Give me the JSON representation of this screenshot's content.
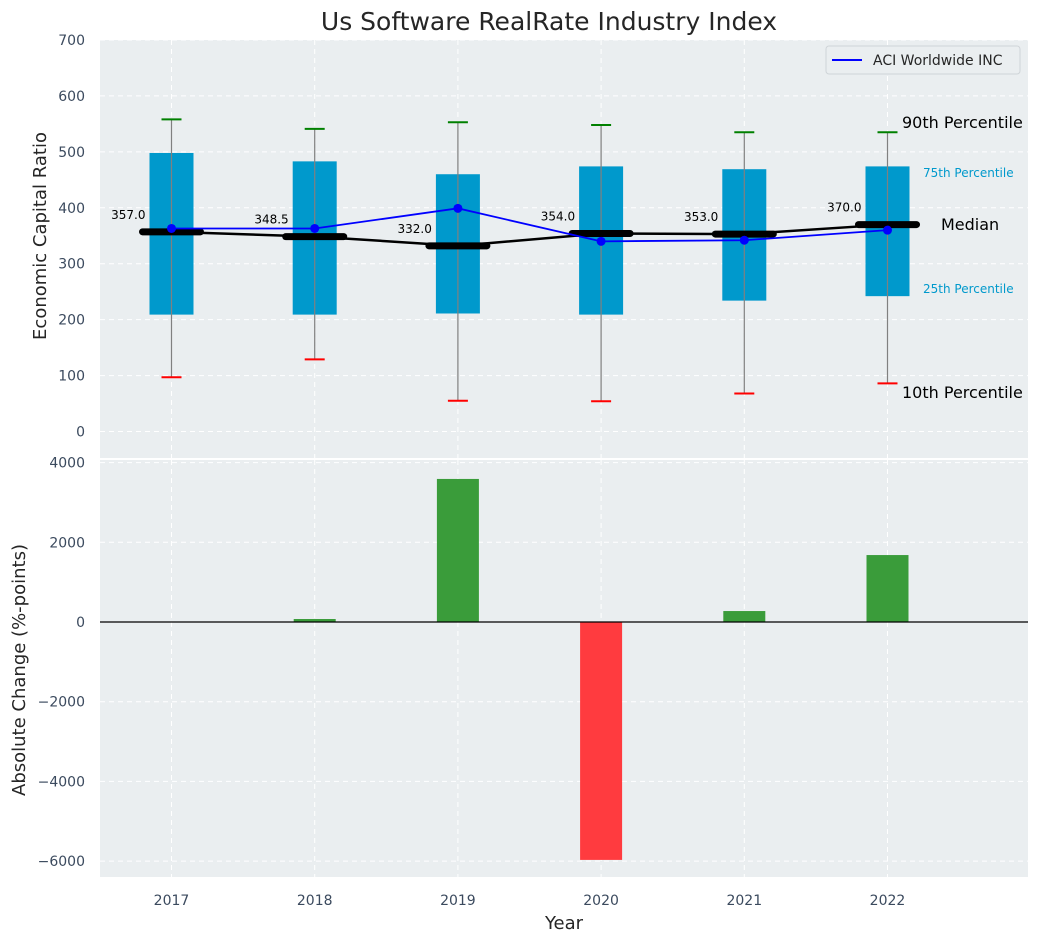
{
  "chart_data": [
    {
      "type": "box",
      "title": "Us Software RealRate Industry Index",
      "xlabel": "",
      "ylabel": "Economic Capital Ratio",
      "ylim": [
        -50,
        700
      ],
      "yticks": [
        0,
        100,
        200,
        300,
        400,
        500,
        600,
        700
      ],
      "grid": true,
      "categories": [
        "2017",
        "2018",
        "2019",
        "2020",
        "2021",
        "2022"
      ],
      "p10": [
        97,
        129,
        55,
        54,
        68,
        86
      ],
      "p25": [
        209,
        209,
        211,
        209,
        234,
        242
      ],
      "median": [
        357.0,
        348.5,
        332.0,
        354.0,
        353.0,
        370.0
      ],
      "median_labels": [
        "357.0",
        "348.5",
        "332.0",
        "354.0",
        "353.0",
        "370.0"
      ],
      "p75": [
        498,
        483,
        460,
        474,
        469,
        474
      ],
      "p90": [
        558,
        541,
        553,
        548,
        535,
        535
      ],
      "series": [
        {
          "name": "ACI Worldwide INC",
          "values": [
            363,
            363,
            399,
            340,
            342,
            360
          ],
          "color": "#0000ff"
        }
      ],
      "legend": {
        "position": "top-right",
        "entries": [
          "ACI Worldwide INC"
        ]
      },
      "annotations": {
        "p90": "90th Percentile",
        "p75": "75th Percentile",
        "median": "Median",
        "p25": "25th Percentile",
        "p10": "10th Percentile"
      },
      "colors": {
        "box": "#0099cc",
        "median": "#000000",
        "p90_cap": "#008000",
        "p10_cap": "#ff0000",
        "whisker": "#808080",
        "percentile_text": "#0099cc",
        "panel_bg": "#eaeef0"
      }
    },
    {
      "type": "bar",
      "xlabel": "Year",
      "ylabel": "Absolute Change (%-points)",
      "ylim": [
        -6400,
        4000
      ],
      "yticks": [
        -6000,
        -4000,
        -2000,
        0,
        2000,
        4000
      ],
      "ytick_labels": [
        "−6000",
        "−4000",
        "−2000",
        "0",
        "2000",
        "4000"
      ],
      "grid": true,
      "categories": [
        "2017",
        "2018",
        "2019",
        "2020",
        "2021",
        "2022"
      ],
      "values": [
        0,
        75,
        3590,
        -5970,
        275,
        1680
      ],
      "colors": {
        "positive": "#3a9c3a",
        "negative": "#ff3b3f",
        "zero_line": "#000000"
      }
    }
  ]
}
